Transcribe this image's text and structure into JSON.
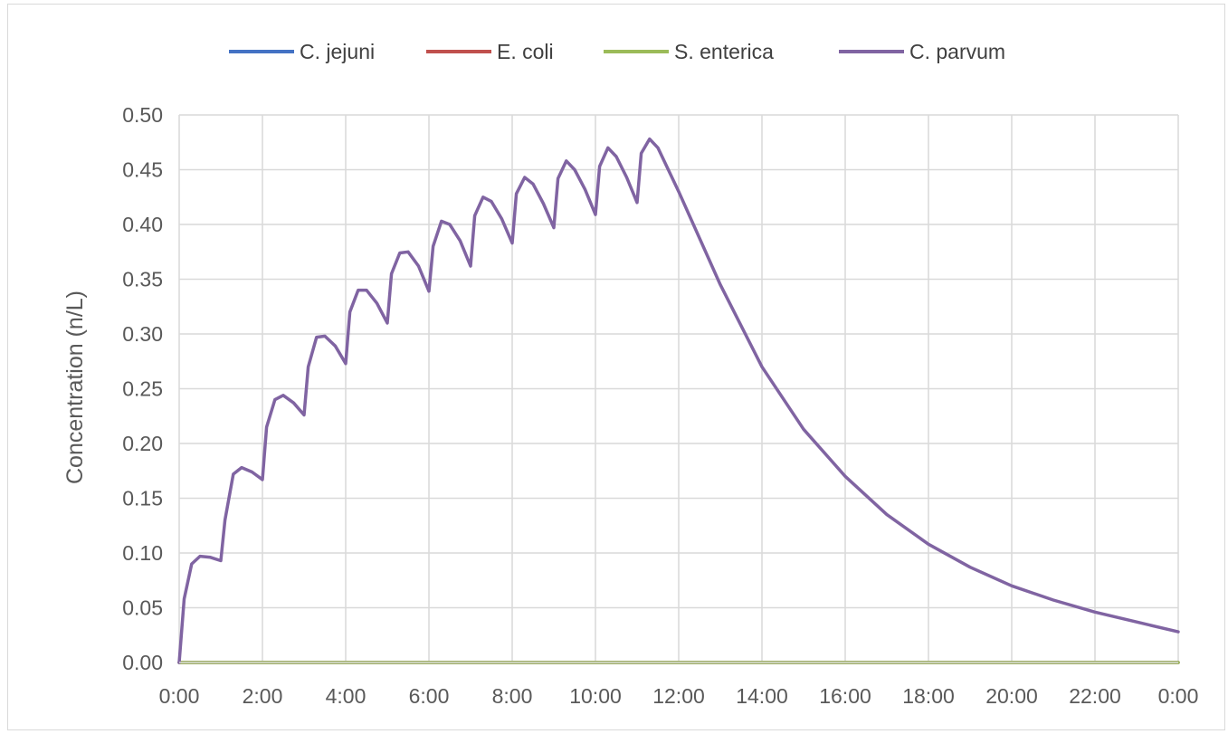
{
  "chart_data": {
    "type": "line",
    "title": "",
    "xlabel": "",
    "ylabel": "Concentration (n/L)",
    "x_unit": "hours",
    "xlim": [
      0,
      24
    ],
    "ylim": [
      0,
      0.5
    ],
    "x_ticks": [
      "0:00",
      "2:00",
      "4:00",
      "6:00",
      "8:00",
      "10:00",
      "12:00",
      "14:00",
      "16:00",
      "18:00",
      "20:00",
      "22:00",
      "0:00"
    ],
    "y_ticks": [
      "0.00",
      "0.05",
      "0.10",
      "0.15",
      "0.20",
      "0.25",
      "0.30",
      "0.35",
      "0.40",
      "0.45",
      "0.50"
    ],
    "grid": true,
    "legend_position": "top",
    "series": [
      {
        "name": "C. jejuni",
        "color": "#4472c4",
        "x": [
          0,
          24
        ],
        "y": [
          0,
          0
        ]
      },
      {
        "name": "E. coli",
        "color": "#c0504d",
        "x": [
          0,
          24
        ],
        "y": [
          0,
          0
        ]
      },
      {
        "name": "S. enterica",
        "color": "#9bbb59",
        "x": [
          0,
          24
        ],
        "y": [
          0,
          0
        ]
      },
      {
        "name": "C. parvum",
        "color": "#8064a2",
        "x": [
          0,
          0.12,
          0.3,
          0.5,
          0.75,
          1.0,
          1.1,
          1.3,
          1.5,
          1.75,
          2.0,
          2.1,
          2.3,
          2.5,
          2.75,
          3.0,
          3.1,
          3.3,
          3.5,
          3.75,
          4.0,
          4.1,
          4.3,
          4.5,
          4.75,
          5.0,
          5.1,
          5.3,
          5.5,
          5.75,
          6.0,
          6.1,
          6.3,
          6.5,
          6.75,
          7.0,
          7.1,
          7.3,
          7.5,
          7.75,
          8.0,
          8.1,
          8.3,
          8.5,
          8.75,
          9.0,
          9.1,
          9.3,
          9.5,
          9.75,
          10.0,
          10.1,
          10.3,
          10.5,
          10.75,
          11.0,
          11.1,
          11.3,
          11.5,
          12.0,
          13.0,
          14.0,
          15.0,
          16.0,
          17.0,
          18.0,
          19.0,
          20.0,
          21.0,
          22.0,
          23.0,
          24.0
        ],
        "y": [
          0.0,
          0.058,
          0.09,
          0.097,
          0.096,
          0.093,
          0.13,
          0.172,
          0.178,
          0.174,
          0.167,
          0.215,
          0.24,
          0.244,
          0.237,
          0.226,
          0.27,
          0.297,
          0.298,
          0.289,
          0.273,
          0.32,
          0.34,
          0.34,
          0.328,
          0.31,
          0.355,
          0.374,
          0.375,
          0.362,
          0.339,
          0.38,
          0.403,
          0.4,
          0.385,
          0.362,
          0.408,
          0.425,
          0.421,
          0.405,
          0.383,
          0.428,
          0.443,
          0.437,
          0.419,
          0.397,
          0.442,
          0.458,
          0.45,
          0.432,
          0.409,
          0.453,
          0.47,
          0.462,
          0.443,
          0.42,
          0.465,
          0.478,
          0.47,
          0.43,
          0.345,
          0.27,
          0.213,
          0.17,
          0.135,
          0.108,
          0.087,
          0.07,
          0.057,
          0.046,
          0.037,
          0.028
        ]
      }
    ]
  }
}
